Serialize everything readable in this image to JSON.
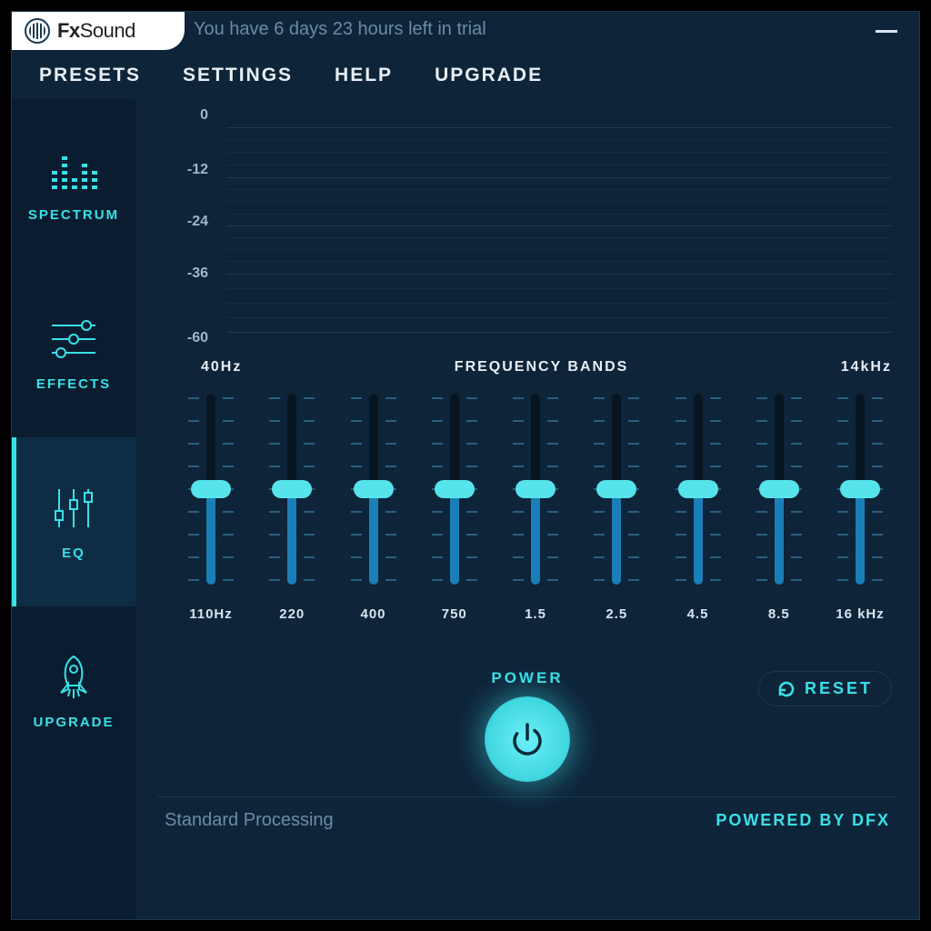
{
  "colors": {
    "app_bg": "#0e2439",
    "sidebar_bg": "#0a1d30",
    "active_bg": "#0e2d44",
    "accent": "#39e0e8",
    "thumb": "#56e3ec",
    "slider_fill": "#1a7fb8",
    "slider_rail": "#071523",
    "tick": "#2a5f7e",
    "grid": "#1a3a52",
    "text_dim": "#6b8ca5",
    "text_light": "#e8eef4",
    "label": "#d6e5f0"
  },
  "titlebar": {
    "brand": "FxSound",
    "trial_message": "You have 6 days 23 hours left in trial"
  },
  "menu": {
    "items": [
      "PRESETS",
      "SETTINGS",
      "HELP",
      "UPGRADE"
    ]
  },
  "sidebar": {
    "items": [
      {
        "id": "spectrum",
        "label": "SPECTRUM",
        "icon": "spectrum-bars-icon",
        "active": false
      },
      {
        "id": "effects",
        "label": "EFFECTS",
        "icon": "sliders-horizontal-icon",
        "active": false
      },
      {
        "id": "eq",
        "label": "EQ",
        "icon": "sliders-vertical-icon",
        "active": true
      },
      {
        "id": "upgrade",
        "label": "UPGRADE",
        "icon": "rocket-icon",
        "active": false
      }
    ]
  },
  "spectrum_display": {
    "y_ticks": [
      "0",
      "-12",
      "-24",
      "-36",
      "-60"
    ],
    "y_positions_pct": [
      2,
      25,
      47,
      69,
      96
    ],
    "minor_lines_between": 3
  },
  "freq_header": {
    "left": "40Hz",
    "center": "FREQUENCY BANDS",
    "right": "14kHz"
  },
  "eq": {
    "bands": [
      {
        "label": "110Hz",
        "value_pct": 50
      },
      {
        "label": "220",
        "value_pct": 50
      },
      {
        "label": "400",
        "value_pct": 50
      },
      {
        "label": "750",
        "value_pct": 50
      },
      {
        "label": "1.5",
        "value_pct": 50
      },
      {
        "label": "2.5",
        "value_pct": 50
      },
      {
        "label": "4.5",
        "value_pct": 50
      },
      {
        "label": "8.5",
        "value_pct": 50
      },
      {
        "label": "16 kHz",
        "value_pct": 50
      }
    ],
    "ticks_per_side": 9
  },
  "controls": {
    "power_label": "POWER",
    "reset_label": "RESET"
  },
  "statusbar": {
    "left": "Standard Processing",
    "right": "POWERED BY DFX"
  }
}
